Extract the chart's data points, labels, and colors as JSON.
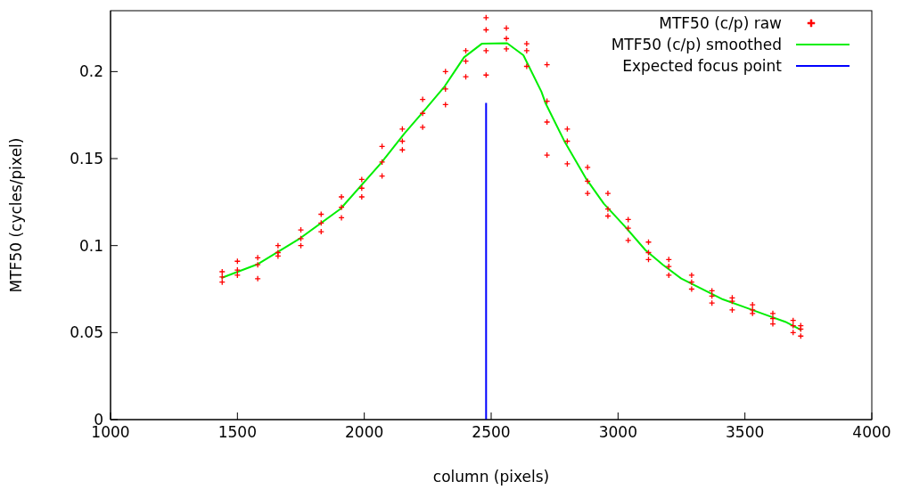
{
  "chart_data": {
    "type": "scatter",
    "xlabel": "column (pixels)",
    "ylabel": "MTF50 (cycles/pixel)",
    "xlim": [
      1000,
      4000
    ],
    "ylim": [
      0,
      0.235
    ],
    "xticks": [
      1000,
      1500,
      2000,
      2500,
      3000,
      3500,
      4000
    ],
    "yticks": [
      0,
      0.05,
      0.1,
      0.15,
      0.2
    ],
    "grid": false,
    "legend": "top right",
    "series": [
      {
        "name": "MTF50 (c/p) raw",
        "marker": "cross",
        "color": "#ff0000",
        "x": [
          1440,
          1440,
          1440,
          1500,
          1500,
          1500,
          1580,
          1580,
          1580,
          1660,
          1660,
          1660,
          1750,
          1750,
          1750,
          1830,
          1830,
          1830,
          1910,
          1910,
          1910,
          1990,
          1990,
          1990,
          2070,
          2070,
          2070,
          2150,
          2150,
          2150,
          2230,
          2230,
          2230,
          2320,
          2320,
          2320,
          2400,
          2400,
          2400,
          2480,
          2480,
          2480,
          2480,
          2560,
          2560,
          2560,
          2640,
          2640,
          2640,
          2720,
          2720,
          2720,
          2720,
          2800,
          2800,
          2800,
          2880,
          2880,
          2880,
          2960,
          2960,
          2960,
          3040,
          3040,
          3040,
          3120,
          3120,
          3120,
          3200,
          3200,
          3200,
          3290,
          3290,
          3290,
          3370,
          3370,
          3370,
          3450,
          3450,
          3450,
          3530,
          3530,
          3530,
          3610,
          3610,
          3610,
          3690,
          3690,
          3690,
          3720,
          3720,
          3720
        ],
        "values": [
          0.085,
          0.082,
          0.079,
          0.091,
          0.086,
          0.083,
          0.093,
          0.089,
          0.081,
          0.1,
          0.096,
          0.094,
          0.109,
          0.104,
          0.1,
          0.118,
          0.113,
          0.108,
          0.128,
          0.122,
          0.116,
          0.138,
          0.133,
          0.128,
          0.157,
          0.148,
          0.14,
          0.167,
          0.16,
          0.155,
          0.184,
          0.176,
          0.168,
          0.2,
          0.19,
          0.181,
          0.212,
          0.206,
          0.197,
          0.231,
          0.224,
          0.212,
          0.198,
          0.225,
          0.219,
          0.213,
          0.216,
          0.212,
          0.203,
          0.204,
          0.183,
          0.171,
          0.152,
          0.167,
          0.16,
          0.147,
          0.145,
          0.137,
          0.13,
          0.13,
          0.121,
          0.117,
          0.115,
          0.11,
          0.103,
          0.102,
          0.096,
          0.092,
          0.092,
          0.088,
          0.083,
          0.083,
          0.079,
          0.075,
          0.074,
          0.071,
          0.067,
          0.07,
          0.068,
          0.063,
          0.066,
          0.063,
          0.061,
          0.061,
          0.058,
          0.055,
          0.057,
          0.054,
          0.05,
          0.054,
          0.052,
          0.048
        ]
      },
      {
        "name": "MTF50 (c/p) smoothed",
        "type": "line",
        "marker": "none",
        "line_style": "solid",
        "color": "#00ee00",
        "x": [
          1437,
          1578,
          1748,
          1906,
          2065,
          2158,
          2240,
          2317,
          2393,
          2463,
          2563,
          2627,
          2698,
          2715,
          2791,
          2873,
          2944,
          3026,
          3108,
          3178,
          3249,
          3331,
          3413,
          3495,
          3577,
          3659,
          3723
        ],
        "values": [
          0.0814,
          0.0892,
          0.1043,
          0.1211,
          0.1473,
          0.1644,
          0.1782,
          0.1916,
          0.2082,
          0.216,
          0.2163,
          0.2094,
          0.1885,
          0.1816,
          0.1593,
          0.1387,
          0.1241,
          0.1112,
          0.0974,
          0.0888,
          0.0811,
          0.0751,
          0.0691,
          0.0648,
          0.0605,
          0.0562,
          0.0514
        ]
      },
      {
        "name": "Expected focus point",
        "type": "line",
        "marker": "none",
        "line_style": "solid",
        "color": "#0000ff",
        "x": [
          2480,
          2480
        ],
        "values": [
          0,
          0.182
        ]
      }
    ]
  }
}
